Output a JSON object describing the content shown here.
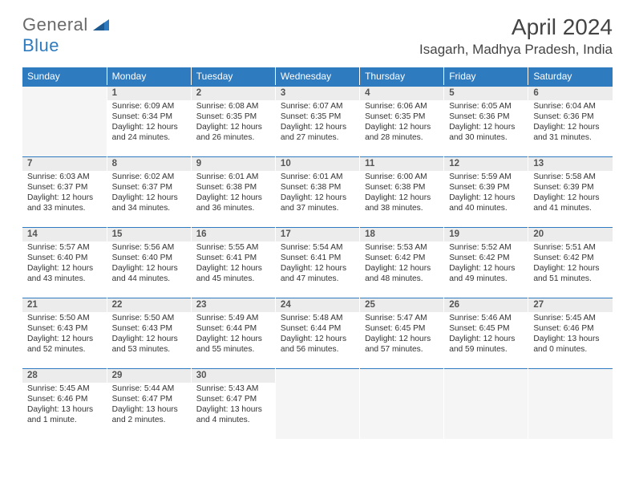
{
  "logo": {
    "text1": "General",
    "text2": "Blue"
  },
  "title": "April 2024",
  "location": "Isagarh, Madhya Pradesh, India",
  "colors": {
    "header_bg": "#2f7bbf",
    "daynum_bg": "#ececec",
    "empty_bg": "#f5f5f5",
    "text": "#333333",
    "logo_gray": "#6a6a6a",
    "logo_blue": "#2f7bbf"
  },
  "fonts": {
    "title_size": 28,
    "location_size": 17,
    "dayhead_size": 12,
    "cell_size": 10.2
  },
  "day_headers": [
    "Sunday",
    "Monday",
    "Tuesday",
    "Wednesday",
    "Thursday",
    "Friday",
    "Saturday"
  ],
  "weeks": [
    [
      {
        "n": "",
        "sunrise": "",
        "sunset": "",
        "daylight": ""
      },
      {
        "n": "1",
        "sunrise": "Sunrise: 6:09 AM",
        "sunset": "Sunset: 6:34 PM",
        "daylight": "Daylight: 12 hours and 24 minutes."
      },
      {
        "n": "2",
        "sunrise": "Sunrise: 6:08 AM",
        "sunset": "Sunset: 6:35 PM",
        "daylight": "Daylight: 12 hours and 26 minutes."
      },
      {
        "n": "3",
        "sunrise": "Sunrise: 6:07 AM",
        "sunset": "Sunset: 6:35 PM",
        "daylight": "Daylight: 12 hours and 27 minutes."
      },
      {
        "n": "4",
        "sunrise": "Sunrise: 6:06 AM",
        "sunset": "Sunset: 6:35 PM",
        "daylight": "Daylight: 12 hours and 28 minutes."
      },
      {
        "n": "5",
        "sunrise": "Sunrise: 6:05 AM",
        "sunset": "Sunset: 6:36 PM",
        "daylight": "Daylight: 12 hours and 30 minutes."
      },
      {
        "n": "6",
        "sunrise": "Sunrise: 6:04 AM",
        "sunset": "Sunset: 6:36 PM",
        "daylight": "Daylight: 12 hours and 31 minutes."
      }
    ],
    [
      {
        "n": "7",
        "sunrise": "Sunrise: 6:03 AM",
        "sunset": "Sunset: 6:37 PM",
        "daylight": "Daylight: 12 hours and 33 minutes."
      },
      {
        "n": "8",
        "sunrise": "Sunrise: 6:02 AM",
        "sunset": "Sunset: 6:37 PM",
        "daylight": "Daylight: 12 hours and 34 minutes."
      },
      {
        "n": "9",
        "sunrise": "Sunrise: 6:01 AM",
        "sunset": "Sunset: 6:38 PM",
        "daylight": "Daylight: 12 hours and 36 minutes."
      },
      {
        "n": "10",
        "sunrise": "Sunrise: 6:01 AM",
        "sunset": "Sunset: 6:38 PM",
        "daylight": "Daylight: 12 hours and 37 minutes."
      },
      {
        "n": "11",
        "sunrise": "Sunrise: 6:00 AM",
        "sunset": "Sunset: 6:38 PM",
        "daylight": "Daylight: 12 hours and 38 minutes."
      },
      {
        "n": "12",
        "sunrise": "Sunrise: 5:59 AM",
        "sunset": "Sunset: 6:39 PM",
        "daylight": "Daylight: 12 hours and 40 minutes."
      },
      {
        "n": "13",
        "sunrise": "Sunrise: 5:58 AM",
        "sunset": "Sunset: 6:39 PM",
        "daylight": "Daylight: 12 hours and 41 minutes."
      }
    ],
    [
      {
        "n": "14",
        "sunrise": "Sunrise: 5:57 AM",
        "sunset": "Sunset: 6:40 PM",
        "daylight": "Daylight: 12 hours and 43 minutes."
      },
      {
        "n": "15",
        "sunrise": "Sunrise: 5:56 AM",
        "sunset": "Sunset: 6:40 PM",
        "daylight": "Daylight: 12 hours and 44 minutes."
      },
      {
        "n": "16",
        "sunrise": "Sunrise: 5:55 AM",
        "sunset": "Sunset: 6:41 PM",
        "daylight": "Daylight: 12 hours and 45 minutes."
      },
      {
        "n": "17",
        "sunrise": "Sunrise: 5:54 AM",
        "sunset": "Sunset: 6:41 PM",
        "daylight": "Daylight: 12 hours and 47 minutes."
      },
      {
        "n": "18",
        "sunrise": "Sunrise: 5:53 AM",
        "sunset": "Sunset: 6:42 PM",
        "daylight": "Daylight: 12 hours and 48 minutes."
      },
      {
        "n": "19",
        "sunrise": "Sunrise: 5:52 AM",
        "sunset": "Sunset: 6:42 PM",
        "daylight": "Daylight: 12 hours and 49 minutes."
      },
      {
        "n": "20",
        "sunrise": "Sunrise: 5:51 AM",
        "sunset": "Sunset: 6:42 PM",
        "daylight": "Daylight: 12 hours and 51 minutes."
      }
    ],
    [
      {
        "n": "21",
        "sunrise": "Sunrise: 5:50 AM",
        "sunset": "Sunset: 6:43 PM",
        "daylight": "Daylight: 12 hours and 52 minutes."
      },
      {
        "n": "22",
        "sunrise": "Sunrise: 5:50 AM",
        "sunset": "Sunset: 6:43 PM",
        "daylight": "Daylight: 12 hours and 53 minutes."
      },
      {
        "n": "23",
        "sunrise": "Sunrise: 5:49 AM",
        "sunset": "Sunset: 6:44 PM",
        "daylight": "Daylight: 12 hours and 55 minutes."
      },
      {
        "n": "24",
        "sunrise": "Sunrise: 5:48 AM",
        "sunset": "Sunset: 6:44 PM",
        "daylight": "Daylight: 12 hours and 56 minutes."
      },
      {
        "n": "25",
        "sunrise": "Sunrise: 5:47 AM",
        "sunset": "Sunset: 6:45 PM",
        "daylight": "Daylight: 12 hours and 57 minutes."
      },
      {
        "n": "26",
        "sunrise": "Sunrise: 5:46 AM",
        "sunset": "Sunset: 6:45 PM",
        "daylight": "Daylight: 12 hours and 59 minutes."
      },
      {
        "n": "27",
        "sunrise": "Sunrise: 5:45 AM",
        "sunset": "Sunset: 6:46 PM",
        "daylight": "Daylight: 13 hours and 0 minutes."
      }
    ],
    [
      {
        "n": "28",
        "sunrise": "Sunrise: 5:45 AM",
        "sunset": "Sunset: 6:46 PM",
        "daylight": "Daylight: 13 hours and 1 minute."
      },
      {
        "n": "29",
        "sunrise": "Sunrise: 5:44 AM",
        "sunset": "Sunset: 6:47 PM",
        "daylight": "Daylight: 13 hours and 2 minutes."
      },
      {
        "n": "30",
        "sunrise": "Sunrise: 5:43 AM",
        "sunset": "Sunset: 6:47 PM",
        "daylight": "Daylight: 13 hours and 4 minutes."
      },
      {
        "n": "",
        "sunrise": "",
        "sunset": "",
        "daylight": ""
      },
      {
        "n": "",
        "sunrise": "",
        "sunset": "",
        "daylight": ""
      },
      {
        "n": "",
        "sunrise": "",
        "sunset": "",
        "daylight": ""
      },
      {
        "n": "",
        "sunrise": "",
        "sunset": "",
        "daylight": ""
      }
    ]
  ]
}
